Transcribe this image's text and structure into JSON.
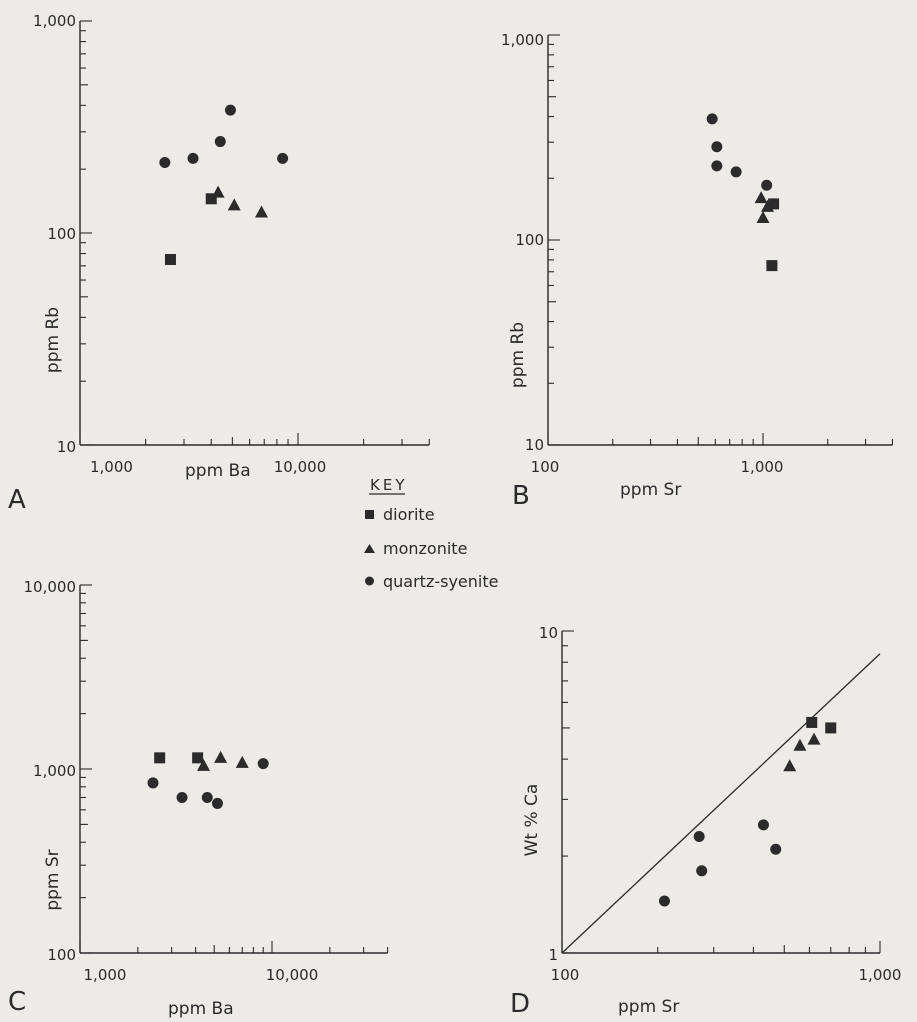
{
  "legend": {
    "title": "KEY",
    "entries": [
      {
        "label": "diorite",
        "marker": "square"
      },
      {
        "label": "monzonite",
        "marker": "triangle"
      },
      {
        "label": "quartz-syenite",
        "marker": "circle"
      }
    ]
  },
  "colors": {
    "ink": "#2b2b2b",
    "paper": "#ecebe6"
  },
  "chart_data": [
    {
      "panel": "A",
      "type": "scatter",
      "xscale": "log",
      "yscale": "log",
      "xlabel": "ppm Ba",
      "ylabel": "ppm Rb",
      "xlim": [
        1000,
        40000
      ],
      "ylim": [
        10,
        1000
      ],
      "xticklabels": [
        "1,000",
        "10,000"
      ],
      "yticklabels": [
        "10",
        "100",
        "1,000"
      ],
      "series": [
        {
          "name": "diorite",
          "marker": "square",
          "points": [
            [
              4000,
              145
            ],
            [
              2600,
              75
            ]
          ]
        },
        {
          "name": "monzonite",
          "marker": "triangle",
          "points": [
            [
              4300,
              155
            ],
            [
              5100,
              135
            ],
            [
              6800,
              125
            ]
          ]
        },
        {
          "name": "quartz-syenite",
          "marker": "circle",
          "points": [
            [
              2450,
              215
            ],
            [
              3300,
              225
            ],
            [
              4400,
              270
            ],
            [
              4900,
              380
            ],
            [
              8500,
              225
            ]
          ]
        }
      ]
    },
    {
      "panel": "B",
      "type": "scatter",
      "xscale": "log",
      "yscale": "log",
      "xlabel": "ppm Sr",
      "ylabel": "ppm Rb",
      "xlim": [
        100,
        4000
      ],
      "ylim": [
        10,
        1000
      ],
      "xticklabels": [
        "100",
        "1,000"
      ],
      "yticklabels": [
        "10",
        "100",
        "1,000"
      ],
      "series": [
        {
          "name": "diorite",
          "marker": "square",
          "points": [
            [
              1120,
              150
            ],
            [
              1100,
              75
            ]
          ]
        },
        {
          "name": "monzonite",
          "marker": "triangle",
          "points": [
            [
              980,
              160
            ],
            [
              1050,
              145
            ],
            [
              1000,
              128
            ]
          ]
        },
        {
          "name": "quartz-syenite",
          "marker": "circle",
          "points": [
            [
              580,
              390
            ],
            [
              610,
              285
            ],
            [
              610,
              230
            ],
            [
              750,
              215
            ],
            [
              1040,
              185
            ]
          ]
        }
      ]
    },
    {
      "panel": "C",
      "type": "scatter",
      "xscale": "log",
      "yscale": "log",
      "xlabel": "ppm Ba",
      "ylabel": "ppm Sr",
      "xlim": [
        1000,
        40000
      ],
      "ylim": [
        100,
        10000
      ],
      "xticklabels": [
        "1,000",
        "10,000"
      ],
      "yticklabels": [
        "100",
        "1,000",
        "10,000"
      ],
      "series": [
        {
          "name": "diorite",
          "marker": "square",
          "points": [
            [
              2600,
              1150
            ],
            [
              4100,
              1150
            ]
          ]
        },
        {
          "name": "monzonite",
          "marker": "triangle",
          "points": [
            [
              4400,
              1040
            ],
            [
              5400,
              1150
            ],
            [
              7000,
              1080
            ]
          ]
        },
        {
          "name": "quartz-syenite",
          "marker": "circle",
          "points": [
            [
              2400,
              840
            ],
            [
              3400,
              700
            ],
            [
              4600,
              700
            ],
            [
              5200,
              650
            ],
            [
              9000,
              1070
            ]
          ]
        }
      ]
    },
    {
      "panel": "D",
      "type": "scatter",
      "xscale": "log",
      "yscale": "log",
      "xlabel": "ppm Sr",
      "ylabel": "Wt % Ca",
      "xlim": [
        100,
        1000
      ],
      "ylim": [
        1,
        10
      ],
      "xticklabels": [
        "100",
        "1,000"
      ],
      "yticklabels": [
        "1",
        "10"
      ],
      "reference_line": {
        "points": [
          [
            100,
            1
          ],
          [
            1000,
            8.5
          ]
        ]
      },
      "series": [
        {
          "name": "diorite",
          "marker": "square",
          "points": [
            [
              610,
              5.2
            ],
            [
              700,
              5.0
            ]
          ]
        },
        {
          "name": "monzonite",
          "marker": "triangle",
          "points": [
            [
              520,
              3.8
            ],
            [
              560,
              4.4
            ],
            [
              620,
              4.6
            ]
          ]
        },
        {
          "name": "quartz-syenite",
          "marker": "circle",
          "points": [
            [
              210,
              1.45
            ],
            [
              270,
              2.3
            ],
            [
              275,
              1.8
            ],
            [
              430,
              2.5
            ],
            [
              470,
              2.1
            ]
          ]
        }
      ]
    }
  ]
}
